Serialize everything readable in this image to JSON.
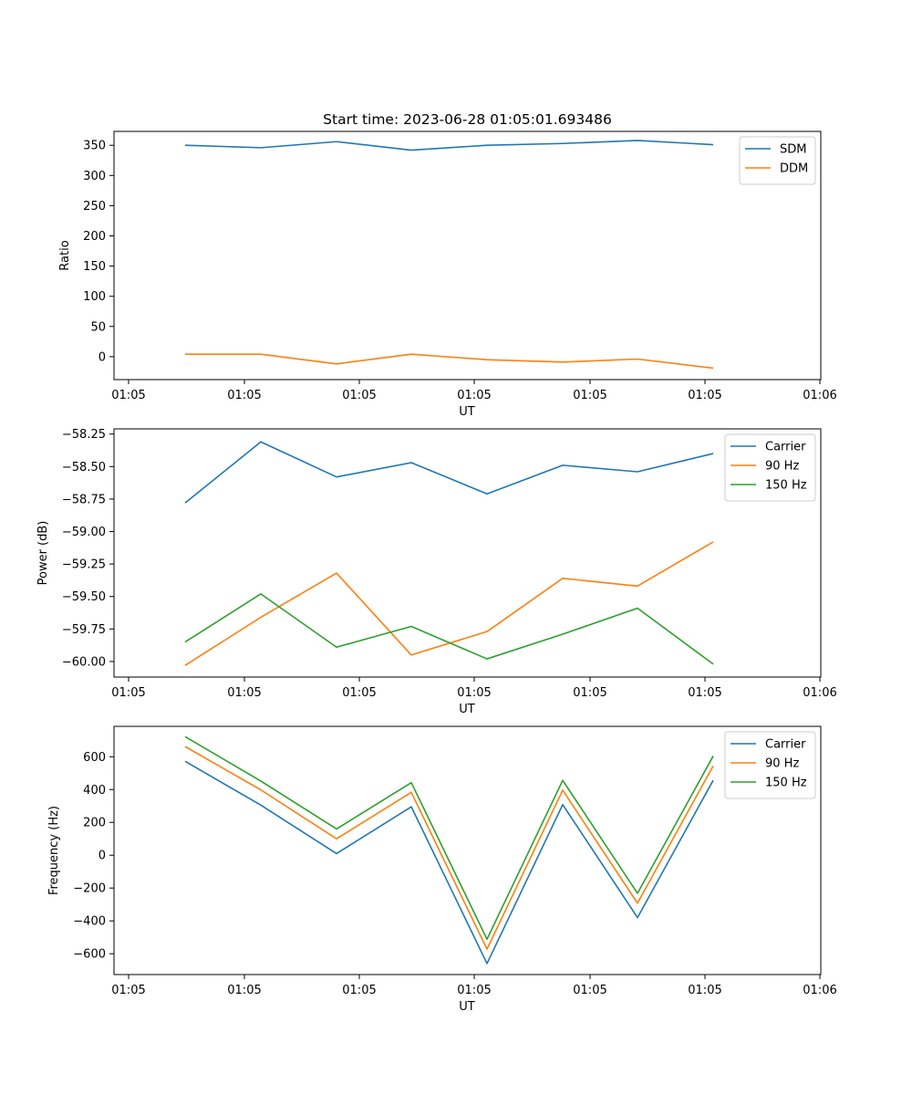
{
  "chart_data": [
    {
      "type": "line",
      "name": "ratio",
      "title": "Start time: 2023-06-28 01:05:01.693486",
      "xlabel": "UT",
      "ylabel": "Ratio",
      "x_tick_labels": [
        "01:05",
        "01:05",
        "01:05",
        "01:05",
        "01:05",
        "01:05",
        "01:06"
      ],
      "yticks": [
        0,
        50,
        100,
        150,
        200,
        250,
        300,
        350
      ],
      "ylim": [
        -38,
        373
      ],
      "legend": "top-right",
      "series": [
        {
          "name": "SDM",
          "color": "#1f77b4",
          "values": [
            350,
            346,
            356,
            342,
            350,
            353,
            358,
            351
          ]
        },
        {
          "name": "DDM",
          "color": "#ff7f0e",
          "values": [
            4,
            4,
            -12,
            4,
            -5,
            -9,
            -4,
            -19
          ]
        }
      ]
    },
    {
      "type": "line",
      "name": "power",
      "title": "",
      "xlabel": "UT",
      "ylabel": "Power (dB)",
      "x_tick_labels": [
        "01:05",
        "01:05",
        "01:05",
        "01:05",
        "01:05",
        "01:05",
        "01:06"
      ],
      "yticks": [
        -60.0,
        -59.75,
        -59.5,
        -59.25,
        -59.0,
        -58.75,
        -58.5,
        -58.25
      ],
      "ytick_labels": [
        "−60.00",
        "−59.75",
        "−59.50",
        "−59.25",
        "−59.00",
        "−58.75",
        "−58.50",
        "−58.25"
      ],
      "ylim": [
        -60.12,
        -58.21
      ],
      "legend": "top-right",
      "series": [
        {
          "name": "Carrier",
          "color": "#1f77b4",
          "values": [
            -58.78,
            -58.31,
            -58.58,
            -58.47,
            -58.71,
            -58.49,
            -58.54,
            -58.4
          ]
        },
        {
          "name": "90 Hz",
          "color": "#ff7f0e",
          "values": [
            -60.03,
            -59.66,
            -59.32,
            -59.95,
            -59.77,
            -59.36,
            -59.42,
            -59.08
          ]
        },
        {
          "name": "150 Hz",
          "color": "#2ca02c",
          "values": [
            -59.85,
            -59.48,
            -59.89,
            -59.73,
            -59.98,
            -59.79,
            -59.59,
            -60.02
          ]
        }
      ]
    },
    {
      "type": "line",
      "name": "frequency",
      "title": "",
      "xlabel": "UT",
      "ylabel": "Frequency (Hz)",
      "x_tick_labels": [
        "01:05",
        "01:05",
        "01:05",
        "01:05",
        "01:05",
        "01:05",
        "01:06"
      ],
      "yticks": [
        -600,
        -400,
        -200,
        0,
        200,
        400,
        600
      ],
      "ytick_labels": [
        "−600",
        "−400",
        "−200",
        "0",
        "200",
        "400",
        "600"
      ],
      "ylim": [
        -727,
        785
      ],
      "legend": "top-right",
      "series": [
        {
          "name": "Carrier",
          "color": "#1f77b4",
          "values": [
            572,
            305,
            10,
            295,
            -660,
            308,
            -380,
            456
          ]
        },
        {
          "name": "90 Hz",
          "color": "#ff7f0e",
          "values": [
            662,
            398,
            100,
            383,
            -572,
            396,
            -292,
            544
          ]
        },
        {
          "name": "150 Hz",
          "color": "#2ca02c",
          "values": [
            722,
            452,
            160,
            442,
            -512,
            456,
            -232,
            604
          ]
        }
      ]
    }
  ]
}
